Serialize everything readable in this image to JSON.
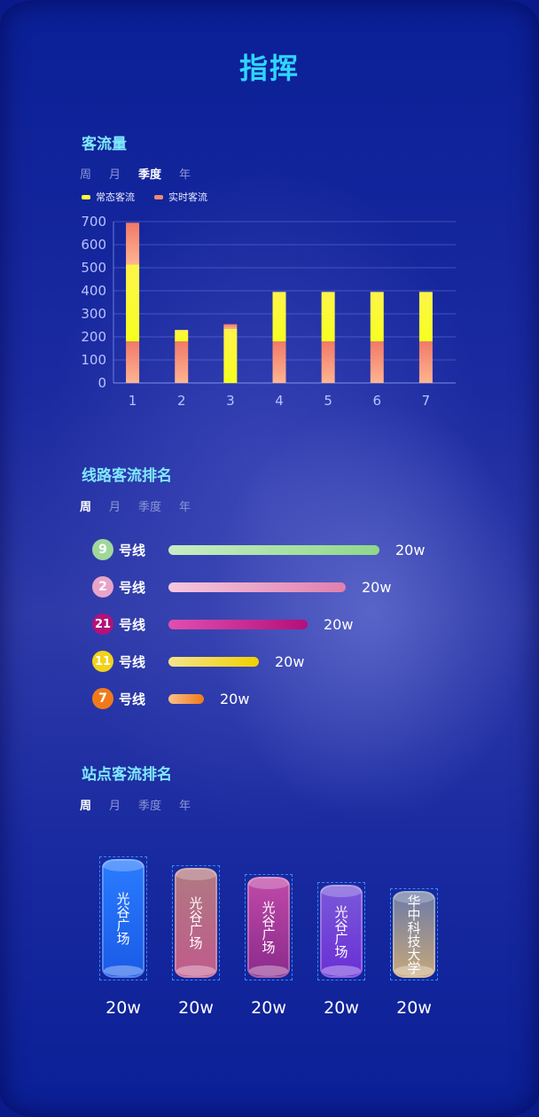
{
  "header": {
    "title": "指挥"
  },
  "passenger_flow": {
    "title": "客流量",
    "tabs": [
      "周",
      "月",
      "季度",
      "年"
    ],
    "active_tab": 2,
    "legend": [
      {
        "label": "常态客流",
        "color": "#ffff33"
      },
      {
        "label": "实时客流",
        "color": "#f08a6e"
      }
    ]
  },
  "chart_data": {
    "type": "bar",
    "stacked": true,
    "categories": [
      "1",
      "2",
      "3",
      "4",
      "5",
      "6",
      "7"
    ],
    "series": [
      {
        "name": "实时客流",
        "values": [
          180,
          180,
          0,
          180,
          180,
          180,
          180
        ]
      },
      {
        "name": "常态客流",
        "values": [
          335,
          50,
          235,
          215,
          215,
          215,
          215
        ]
      }
    ],
    "ylim": [
      0,
      700
    ],
    "yticks": [
      0,
      100,
      200,
      300,
      400,
      500,
      600,
      700
    ],
    "grid": true,
    "legend": "top-left",
    "top_segments": [
      {
        "category": "1",
        "value": 180
      },
      {
        "category": "3",
        "value": 20
      }
    ]
  },
  "line_ranking": {
    "title": "线路客流排名",
    "tabs": [
      "周",
      "月",
      "季度",
      "年"
    ],
    "active_tab": 0,
    "items": [
      {
        "number": "9",
        "label": "号线",
        "value": "20w",
        "level": 1.0,
        "badge_color": "#9fd89a",
        "bar_from": "#c8ecc4",
        "bar_to": "#8ed88a"
      },
      {
        "number": "2",
        "label": "号线",
        "value": "20w",
        "level": 0.84,
        "badge_color": "#e8a4c8",
        "bar_from": "#f6c7df",
        "bar_to": "#e07fae"
      },
      {
        "number": "21",
        "label": "号线",
        "value": "20w",
        "level": 0.66,
        "badge_color": "#b0127a",
        "bar_from": "#e04fb0",
        "bar_to": "#b3107a"
      },
      {
        "number": "11",
        "label": "号线",
        "value": "20w",
        "level": 0.43,
        "badge_color": "#f2d21a",
        "bar_from": "#f5e48c",
        "bar_to": "#f2d000"
      },
      {
        "number": "7",
        "label": "号线",
        "value": "20w",
        "level": 0.17,
        "badge_color": "#f07a1a",
        "bar_from": "#f9c08a",
        "bar_to": "#f07a1a"
      }
    ]
  },
  "station_ranking": {
    "title": "站点客流排名",
    "tabs": [
      "周",
      "月",
      "季度",
      "年"
    ],
    "active_tab": 0,
    "items": [
      {
        "name": "光谷广场",
        "value": "20w",
        "level": 1.0,
        "color_top": "#2a7cff",
        "color_bottom": "#1a5ae6"
      },
      {
        "name": "光谷广场",
        "value": "20w",
        "level": 0.93,
        "color_top": "#b07a82",
        "color_bottom": "#c05a8c"
      },
      {
        "name": "光谷广场",
        "value": "20w",
        "level": 0.86,
        "color_top": "#c04aa8",
        "color_bottom": "#8a2a8c"
      },
      {
        "name": "光谷广场",
        "value": "20w",
        "level": 0.79,
        "color_top": "#7a5ad8",
        "color_bottom": "#6a2ed6"
      },
      {
        "name": "华中科技大学",
        "value": "20w",
        "level": 0.74,
        "color_top": "#6a7aa8",
        "color_bottom": "#c8a87a"
      }
    ]
  }
}
